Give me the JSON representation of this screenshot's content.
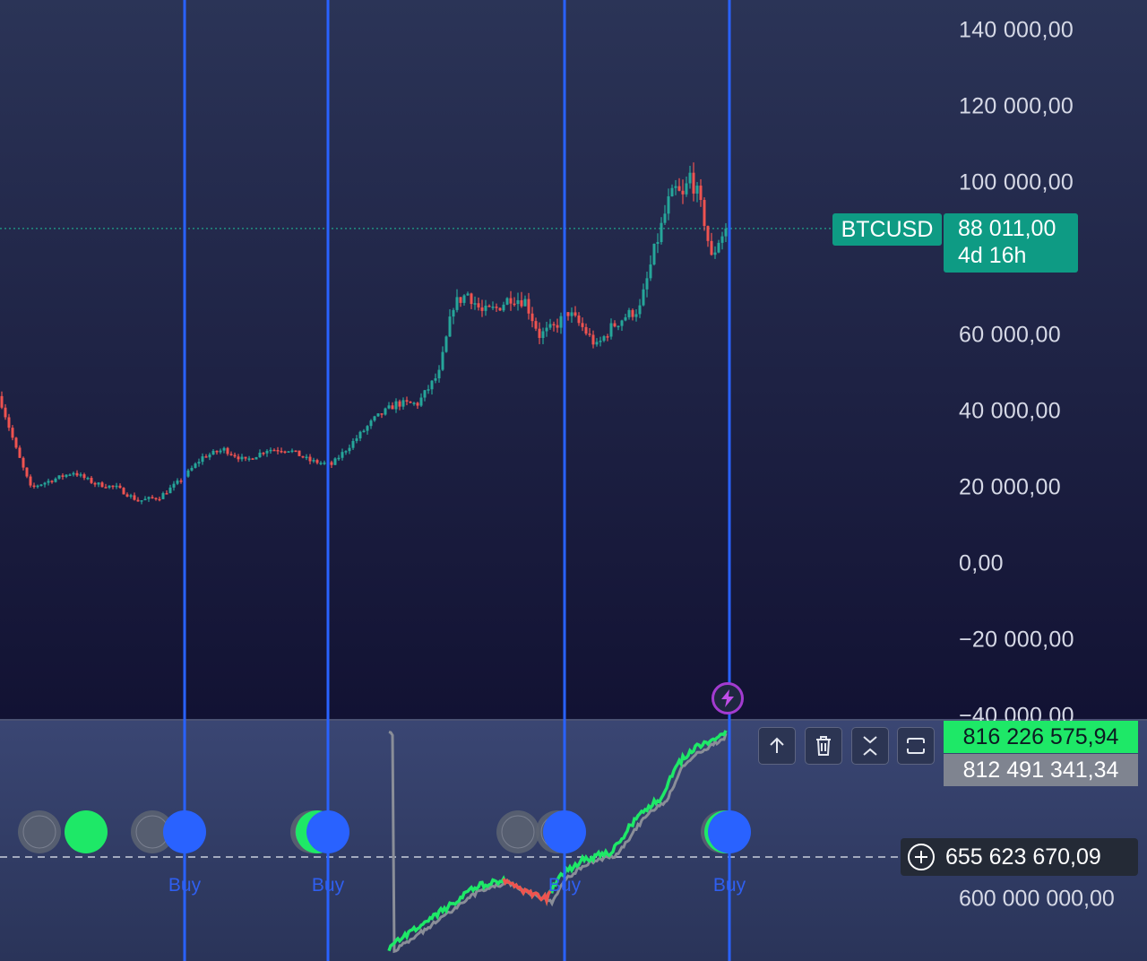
{
  "chart_data": [
    {
      "type": "candlestick",
      "symbol": "BTCUSD",
      "last_price_label": "88 011,00",
      "countdown_label": "4d 16h",
      "y_tick_labels": [
        "140 000,00",
        "120 000,00",
        "100 000,00",
        "60 000,00",
        "40 000,00",
        "20 000,00",
        "0,00",
        "−20 000,00",
        "−40 000,00"
      ],
      "y_ticks": [
        140000,
        120000,
        100000,
        60000,
        40000,
        20000,
        0,
        -20000,
        -40000
      ],
      "ylim": [
        -41000,
        148000
      ],
      "last_price": 88011,
      "candle_anchors": [
        [
          0,
          42000
        ],
        [
          4,
          30000
        ],
        [
          8,
          20000
        ],
        [
          14,
          22000
        ],
        [
          20,
          24000
        ],
        [
          26,
          21000
        ],
        [
          32,
          20000
        ],
        [
          38,
          16500
        ],
        [
          44,
          17500
        ],
        [
          50,
          22000
        ],
        [
          56,
          28000
        ],
        [
          62,
          30000
        ],
        [
          68,
          27000
        ],
        [
          74,
          30000
        ],
        [
          80,
          30000
        ],
        [
          86,
          27000
        ],
        [
          92,
          26000
        ],
        [
          98,
          32000
        ],
        [
          104,
          38000
        ],
        [
          110,
          42000
        ],
        [
          116,
          42000
        ],
        [
          122,
          50000
        ],
        [
          126,
          68000
        ],
        [
          130,
          71000
        ],
        [
          134,
          66000
        ],
        [
          138,
          67000
        ],
        [
          142,
          70000
        ],
        [
          146,
          69000
        ],
        [
          150,
          60000
        ],
        [
          154,
          62000
        ],
        [
          158,
          66000
        ],
        [
          162,
          62000
        ],
        [
          166,
          57000
        ],
        [
          170,
          62000
        ],
        [
          174,
          65000
        ],
        [
          178,
          67000
        ],
        [
          182,
          82000
        ],
        [
          186,
          95000
        ],
        [
          188,
          98000
        ],
        [
          190,
          96000
        ],
        [
          192,
          102000
        ],
        [
          194,
          97000
        ],
        [
          196,
          90000
        ],
        [
          198,
          80000
        ],
        [
          200,
          85000
        ],
        [
          202,
          88011
        ]
      ],
      "candle_count": 203
    },
    {
      "type": "line",
      "series": [
        {
          "name": "",
          "color": "#1ee867",
          "last_value": 816226575.94
        },
        {
          "name": "",
          "color": "#8a8e98",
          "last_value": 812491341.34
        }
      ],
      "equity_anchors": [
        [
          108,
          537000000
        ],
        [
          120,
          575000000
        ],
        [
          132,
          615000000
        ],
        [
          140,
          625000000
        ],
        [
          146,
          610000000
        ],
        [
          152,
          600000000
        ],
        [
          156,
          630000000
        ],
        [
          162,
          650000000
        ],
        [
          170,
          660000000
        ],
        [
          178,
          710000000
        ],
        [
          184,
          730000000
        ],
        [
          188,
          770000000
        ],
        [
          192,
          790000000
        ],
        [
          196,
          800000000
        ],
        [
          202,
          816226575.94
        ]
      ],
      "benchmark_gap": 4000000,
      "equity_label": "816 226 575,94",
      "benchmark_label": "812 491 341,34",
      "crosshair_value": 655623670.09,
      "crosshair_label": "655 623 670,09",
      "y_tick_labels": [
        "600 000 000,00"
      ],
      "y_ticks": [
        600000000
      ],
      "ylim": [
        520000000,
        830000000
      ]
    }
  ],
  "events": [
    {
      "bar": 51,
      "label": "Buy"
    },
    {
      "bar": 91,
      "label": "Buy"
    },
    {
      "bar": 157,
      "label": "Buy"
    },
    {
      "bar": 203,
      "label": "Buy"
    }
  ],
  "colors": {
    "bg_top": "#2b3457",
    "bg_bottom": "#121233",
    "up": "#26a69a",
    "down": "#ef5350",
    "event_line": "#2962ff",
    "price_tag": "#0e9b84",
    "equity": "#1ee867",
    "benchmark": "#8a8e98",
    "equity_down": "#ef5350",
    "dot_green": "#1ee867",
    "dot_blue": "#2962ff",
    "dot_grey": "#5d6472"
  },
  "toolbar": {
    "buttons": [
      {
        "name": "move-up-button",
        "icon": "arrow-up-icon"
      },
      {
        "name": "delete-button",
        "icon": "trash-icon"
      },
      {
        "name": "collapse-button",
        "icon": "collapse-icon"
      },
      {
        "name": "maximize-button",
        "icon": "maximize-icon"
      }
    ]
  },
  "alert_icon": "lightning-icon"
}
